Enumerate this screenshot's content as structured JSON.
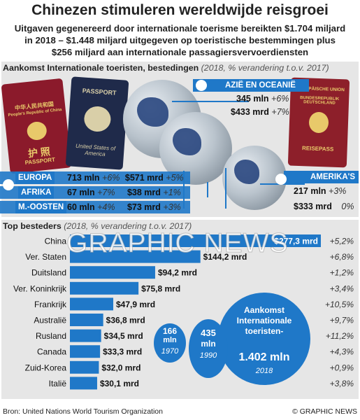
{
  "header": {
    "title": "Chinezen stimuleren wereldwijde reisgroei",
    "subtitle_lines": [
      "Uitgaven gegenereerd door internationale toerisme bereikten $1.704 miljard",
      "in 2018 – $1.448 miljard uitgegeven op toeristische bestemmingen plus",
      "$256 miljard aan internationale passagiersvervoerdiensten"
    ]
  },
  "arrivals_section": {
    "heading": "Aankomst Internationale toeristen, bestedingen",
    "heading_note": "(2018, % verandering t.o.v. 2017)"
  },
  "passports": {
    "china": [
      "中华人民共和国",
      "People's Republic of China",
      "护 照",
      "PASSPORT"
    ],
    "usa": [
      "PASSPORT",
      "United States of America"
    ],
    "germany": [
      "EUROPÄISCHE UNION",
      "BUNDESREPUBLIK DEUTSCHLAND",
      "REISEPASS"
    ]
  },
  "regions": [
    {
      "label": "AZIË EN OCEANIË",
      "arrivals": "345 mln",
      "arrivals_change": "+6%",
      "spend": "$433 mrd",
      "spend_change": "+7%"
    },
    {
      "label": "EUROPA",
      "arrivals": "713 mln",
      "arrivals_change": "+6%",
      "spend": "$571 mrd",
      "spend_change": "+5%"
    },
    {
      "label": "AFRIKA",
      "arrivals": "67 mln",
      "arrivals_change": "+7%",
      "spend": "$38 mrd",
      "spend_change": "+1%"
    },
    {
      "label": "M.-OOSTEN",
      "arrivals": "60 mln",
      "arrivals_change": "+4%",
      "spend": "$73 mrd",
      "spend_change": "+3%"
    },
    {
      "label": "AMERIKA'S",
      "arrivals": "217 mln",
      "arrivals_change": "+3%",
      "spend": "$333 mrd",
      "spend_change": "0%"
    }
  ],
  "spenders_section": {
    "heading": "Top besteders",
    "heading_note": "(2018, % verandering t.o.v. 2017)"
  },
  "watermark": "GRAPHIC NEWS",
  "bubbles": [
    {
      "value": "166",
      "unit": "mln",
      "year": "1970"
    },
    {
      "value": "435",
      "unit": "mln",
      "year": "1990"
    },
    {
      "title": "Aankomst Internationale toeristen-",
      "value": "1.402 mln",
      "year": "2018"
    }
  ],
  "footer": {
    "source": "Bron: United Nations World Tourism Organization",
    "credit": "© GRAPHIC NEWS"
  },
  "colors": {
    "bar": "#1f78c8",
    "panel": "#e6e6e6",
    "bubble": "#1f78c8"
  },
  "chart_data": {
    "type": "bar",
    "orientation": "horizontal",
    "title": "Top besteders",
    "categories": [
      "China",
      "Ver. Staten",
      "Duitsland",
      "Ver. Koninkrijk",
      "Frankrijk",
      "Australië",
      "Rusland",
      "Canada",
      "Zuid-Korea",
      "Italië"
    ],
    "values": [
      277.3,
      144.2,
      94.2,
      75.8,
      47.9,
      36.8,
      34.5,
      33.3,
      32.0,
      30.1
    ],
    "value_labels": [
      "$277,3 mrd",
      "$144,2 mrd",
      "$94,2 mrd",
      "$75,8 mrd",
      "$47,9 mrd",
      "$36,8 mrd",
      "$34,5 mrd",
      "$33,3 mrd",
      "$32,0 mrd",
      "$30,1 mrd"
    ],
    "changes": [
      "+5,2%",
      "+6,8%",
      "+1,2%",
      "+3,4%",
      "+10,5%",
      "+9,7%",
      "+11,2%",
      "+4,3%",
      "+0,9%",
      "+3,8%"
    ],
    "xlim": [
      0,
      277.3
    ],
    "grid": false,
    "legend": "none"
  }
}
